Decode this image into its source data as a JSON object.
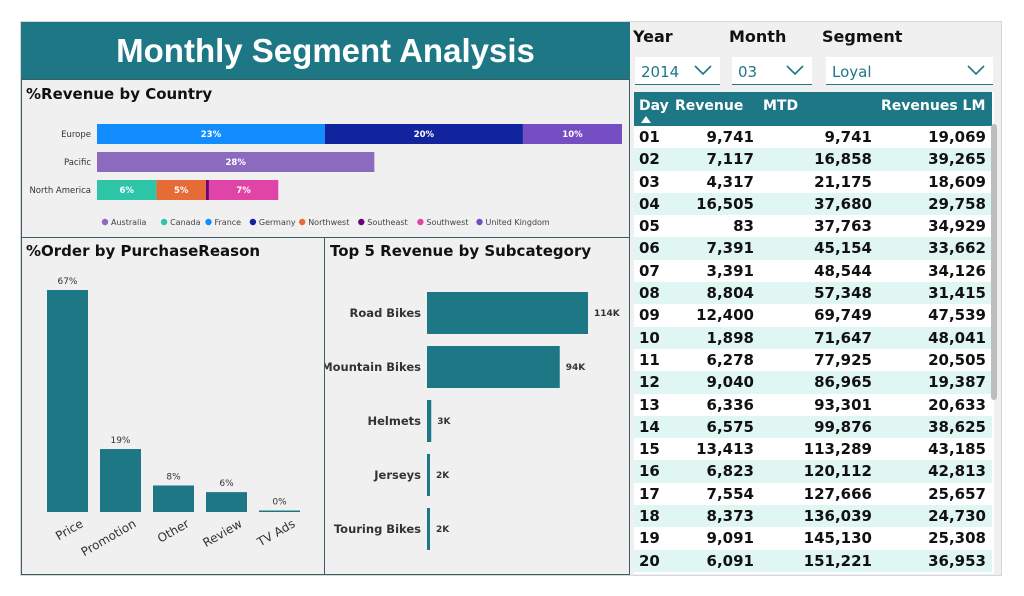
{
  "title": "Monthly Segment Analysis",
  "revenue_by_country": {
    "title": "%Revenue by Country",
    "chart_data": {
      "type": "bar",
      "orientation": "horizontal-stacked",
      "categories": [
        "Europe",
        "Pacific",
        "North America"
      ],
      "segments": [
        {
          "category": "Europe",
          "series": "France",
          "value": 23,
          "label": "23%",
          "color": "#118dff"
        },
        {
          "category": "Europe",
          "series": "Germany",
          "value": 20,
          "label": "20%",
          "color": "#12239e"
        },
        {
          "category": "Europe",
          "series": "United Kingdom",
          "value": 10,
          "label": "10%",
          "color": "#744ec2"
        },
        {
          "category": "Pacific",
          "series": "Australia",
          "value": 28,
          "label": "28%",
          "color": "#8c6bbf"
        },
        {
          "category": "North America",
          "series": "Canada",
          "value": 6,
          "label": "6%",
          "color": "#2ec4a8"
        },
        {
          "category": "North America",
          "series": "Northwest",
          "value": 5,
          "label": "5%",
          "color": "#e66c37"
        },
        {
          "category": "North America",
          "series": "Southeast",
          "value": 0.3,
          "label": "",
          "color": "#6b007b"
        },
        {
          "category": "North America",
          "series": "Southwest",
          "value": 7,
          "label": "7%",
          "color": "#e044a7"
        }
      ],
      "legend": [
        {
          "name": "Australia",
          "color": "#8c6bbf"
        },
        {
          "name": "Canada",
          "color": "#2ec4a8"
        },
        {
          "name": "France",
          "color": "#118dff"
        },
        {
          "name": "Germany",
          "color": "#12239e"
        },
        {
          "name": "Northwest",
          "color": "#e66c37"
        },
        {
          "name": "Southeast",
          "color": "#6b007b"
        },
        {
          "name": "Southwest",
          "color": "#e044a7"
        },
        {
          "name": "United Kingdom",
          "color": "#744ec2"
        }
      ],
      "xlim": [
        0,
        53
      ]
    }
  },
  "order_by_reason": {
    "title": "%Order by PurchaseReason",
    "chart_data": {
      "type": "bar",
      "categories": [
        "Price",
        "Promotion",
        "Other",
        "Review",
        "TV Ads"
      ],
      "values": [
        67,
        19,
        8,
        6,
        0.4
      ],
      "labels": [
        "67%",
        "19%",
        "8%",
        "6%",
        "0%"
      ],
      "ylim": [
        0,
        67
      ],
      "color": "#1d7785"
    }
  },
  "top5_subcategory": {
    "title": "Top 5 Revenue by Subcategory",
    "chart_data": {
      "type": "bar",
      "orientation": "horizontal",
      "categories": [
        "Road Bikes",
        "Mountain Bikes",
        "Helmets",
        "Jerseys",
        "Touring Bikes"
      ],
      "values": [
        114,
        94,
        3,
        2,
        2
      ],
      "labels": [
        "114K",
        "94K",
        "3K",
        "2K",
        "2K"
      ],
      "unit": "K",
      "xlim": [
        0,
        114
      ],
      "color": "#1d7785"
    }
  },
  "slicers": {
    "year": {
      "label": "Year",
      "value": "2014"
    },
    "month": {
      "label": "Month",
      "value": "03"
    },
    "segment": {
      "label": "Segment",
      "value": "Loyal"
    }
  },
  "table": {
    "headers": {
      "day": "Day",
      "revenue": "Revenue",
      "mtd": "MTD",
      "lm": "Revenues LM"
    },
    "rows": [
      {
        "day": "01",
        "revenue": "9,741",
        "mtd": "9,741",
        "lm": "19,069"
      },
      {
        "day": "02",
        "revenue": "7,117",
        "mtd": "16,858",
        "lm": "39,265"
      },
      {
        "day": "03",
        "revenue": "4,317",
        "mtd": "21,175",
        "lm": "18,609"
      },
      {
        "day": "04",
        "revenue": "16,505",
        "mtd": "37,680",
        "lm": "29,758"
      },
      {
        "day": "05",
        "revenue": "83",
        "mtd": "37,763",
        "lm": "34,929"
      },
      {
        "day": "06",
        "revenue": "7,391",
        "mtd": "45,154",
        "lm": "33,662"
      },
      {
        "day": "07",
        "revenue": "3,391",
        "mtd": "48,544",
        "lm": "34,126"
      },
      {
        "day": "08",
        "revenue": "8,804",
        "mtd": "57,348",
        "lm": "31,415"
      },
      {
        "day": "09",
        "revenue": "12,400",
        "mtd": "69,749",
        "lm": "47,539"
      },
      {
        "day": "10",
        "revenue": "1,898",
        "mtd": "71,647",
        "lm": "48,041"
      },
      {
        "day": "11",
        "revenue": "6,278",
        "mtd": "77,925",
        "lm": "20,505"
      },
      {
        "day": "12",
        "revenue": "9,040",
        "mtd": "86,965",
        "lm": "19,387"
      },
      {
        "day": "13",
        "revenue": "6,336",
        "mtd": "93,301",
        "lm": "20,633"
      },
      {
        "day": "14",
        "revenue": "6,575",
        "mtd": "99,876",
        "lm": "38,625"
      },
      {
        "day": "15",
        "revenue": "13,413",
        "mtd": "113,289",
        "lm": "43,185"
      },
      {
        "day": "16",
        "revenue": "6,823",
        "mtd": "120,112",
        "lm": "42,813"
      },
      {
        "day": "17",
        "revenue": "7,554",
        "mtd": "127,666",
        "lm": "25,657"
      },
      {
        "day": "18",
        "revenue": "8,373",
        "mtd": "136,039",
        "lm": "24,730"
      },
      {
        "day": "19",
        "revenue": "9,091",
        "mtd": "145,130",
        "lm": "25,308"
      },
      {
        "day": "20",
        "revenue": "6,091",
        "mtd": "151,221",
        "lm": "36,953"
      }
    ]
  }
}
